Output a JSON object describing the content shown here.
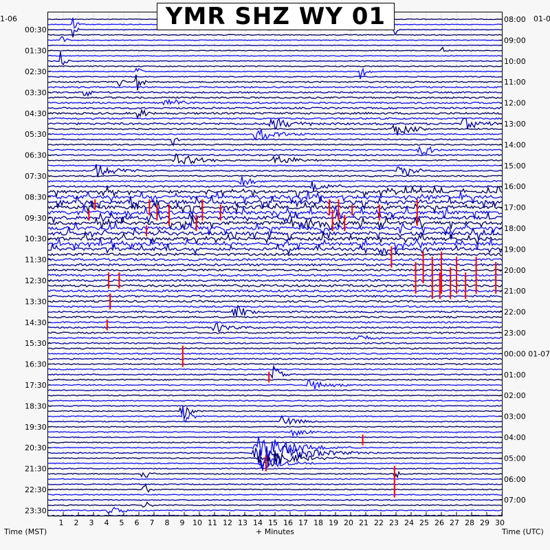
{
  "chart_data": {
    "type": "line",
    "title": "YMR SHZ WY 01",
    "left_top_date": "1-06",
    "right_top_date": "01-0",
    "left_labels": [
      "00:30",
      "01:30",
      "02:30",
      "03:30",
      "04:30",
      "05:30",
      "06:30",
      "07:30",
      "08:30",
      "09:30",
      "10:30",
      "11:30",
      "12:30",
      "13:30",
      "14:30",
      "15:30",
      "16:30",
      "17:30",
      "18:30",
      "19:30",
      "20:30",
      "21:30",
      "22:30",
      "23:30"
    ],
    "right_labels": [
      "08:00",
      "09:00",
      "10:00",
      "11:00",
      "12:00",
      "13:00",
      "14:00",
      "15:00",
      "16:00",
      "17:00",
      "18:00",
      "19:00",
      "20:00",
      "21:00",
      "22:00",
      "23:00",
      "00:00 01-07",
      "01:00",
      "02:00",
      "03:00",
      "04:00",
      "05:00",
      "06:00",
      "07:00"
    ],
    "x_ticks": [
      "1",
      "2",
      "3",
      "4",
      "5",
      "6",
      "7",
      "8",
      "9",
      "10",
      "11",
      "12",
      "13",
      "14",
      "15",
      "16",
      "17",
      "18",
      "19",
      "20",
      "21",
      "22",
      "23",
      "24",
      "25",
      "26",
      "27",
      "28",
      "29",
      "30"
    ],
    "xlim": [
      0,
      30
    ],
    "xlabel": "+ Minutes",
    "left_axis_label": "Time (MST)",
    "right_axis_label": "Time (UTC)",
    "trace_colors": [
      "#000060",
      "#1010ff",
      "#0000a0"
    ],
    "clip_color": "#ff0000",
    "amplitude_per_trace": [
      0.25,
      0.2,
      0.2,
      0.25,
      0.2,
      0.2,
      0.2,
      0.25,
      0.25,
      0.3,
      0.25,
      0.3,
      0.4,
      0.45,
      0.45,
      0.5,
      0.5,
      0.5,
      0.6,
      0.5,
      0.6,
      0.4,
      0.35,
      0.35,
      0.35,
      0.4,
      0.4,
      0.35,
      0.35,
      0.35,
      0.4,
      0.4,
      0.5,
      0.8,
      0.95,
      1.0,
      1.0,
      1.0,
      1.0,
      1.0,
      1.0,
      1.0,
      1.0,
      0.9,
      0.85,
      0.75,
      0.7,
      0.7,
      0.6,
      0.6,
      0.6,
      0.7,
      0.7,
      0.6,
      0.55,
      0.5,
      0.5,
      0.5,
      0.45,
      0.45,
      0.45,
      0.4,
      0.4,
      0.4,
      0.4,
      0.4,
      0.35,
      0.35,
      0.35,
      0.35,
      0.3,
      0.3,
      0.3,
      0.3,
      0.3,
      0.3,
      0.3,
      0.3,
      0.3,
      0.3,
      0.3,
      0.3,
      0.3,
      0.3,
      0.3,
      0.3,
      0.3,
      0.3,
      0.3,
      0.3,
      0.3,
      0.3,
      0.3,
      0.3,
      0.3,
      0.3
    ],
    "events": [
      {
        "row": 1,
        "x": 1.6,
        "amp": 6,
        "dur": 0.3
      },
      {
        "row": 2,
        "x": 1.6,
        "amp": 8,
        "dur": 0.2
      },
      {
        "row": 2,
        "x": 22.9,
        "amp": 5,
        "dur": 0.2
      },
      {
        "row": 4,
        "x": 0.8,
        "amp": 6,
        "dur": 0.3
      },
      {
        "row": 6,
        "x": 25.9,
        "amp": 5,
        "dur": 0.3
      },
      {
        "row": 8,
        "x": 0.8,
        "amp": 7,
        "dur": 0.3
      },
      {
        "row": 10,
        "x": 20.6,
        "amp": 7,
        "dur": 0.4
      },
      {
        "row": 10,
        "x": 5.8,
        "amp": 5,
        "dur": 0.3
      },
      {
        "row": 12,
        "x": 5.8,
        "amp": 9,
        "dur": 0.4
      },
      {
        "row": 12,
        "x": 4.6,
        "amp": 5,
        "dur": 0.3
      },
      {
        "row": 14,
        "x": 2.4,
        "amp": 6,
        "dur": 0.3
      },
      {
        "row": 16,
        "x": 7.8,
        "amp": 4,
        "dur": 1.0
      },
      {
        "row": 18,
        "x": 5.9,
        "amp": 8,
        "dur": 0.4
      },
      {
        "row": 20,
        "x": 14.8,
        "amp": 5,
        "dur": 1.5
      },
      {
        "row": 20,
        "x": 27.5,
        "amp": 4,
        "dur": 1.5
      },
      {
        "row": 21,
        "x": 22.9,
        "amp": 5,
        "dur": 1.2
      },
      {
        "row": 22,
        "x": 13.8,
        "amp": 5,
        "dur": 1.5
      },
      {
        "row": 23,
        "x": 8.2,
        "amp": 6,
        "dur": 0.3
      },
      {
        "row": 25,
        "x": 24.6,
        "amp": 4,
        "dur": 1.2
      },
      {
        "row": 27,
        "x": 8.5,
        "amp": 5,
        "dur": 1.5
      },
      {
        "row": 27,
        "x": 15.0,
        "amp": 4,
        "dur": 1.5
      },
      {
        "row": 29,
        "x": 3.2,
        "amp": 5,
        "dur": 1.5
      },
      {
        "row": 29,
        "x": 23.2,
        "amp": 5,
        "dur": 1.2
      },
      {
        "row": 31,
        "x": 12.8,
        "amp": 4,
        "dur": 1.0
      },
      {
        "row": 32,
        "x": 17.5,
        "amp": 4,
        "dur": 1.2
      },
      {
        "row": 56,
        "x": 12.3,
        "amp": 5,
        "dur": 1.2
      },
      {
        "row": 59,
        "x": 11.0,
        "amp": 4,
        "dur": 1.2
      },
      {
        "row": 61,
        "x": 20.0,
        "amp": 4,
        "dur": 1.0
      },
      {
        "row": 68,
        "x": 14.9,
        "amp": 8,
        "dur": 0.6
      },
      {
        "row": 70,
        "x": 17.3,
        "amp": 4,
        "dur": 1.5
      },
      {
        "row": 75,
        "x": 8.8,
        "amp": 8,
        "dur": 0.5
      },
      {
        "row": 76,
        "x": 8.9,
        "amp": 8,
        "dur": 0.5
      },
      {
        "row": 77,
        "x": 15.4,
        "amp": 4,
        "dur": 1.2
      },
      {
        "row": 79,
        "x": 16.2,
        "amp": 3,
        "dur": 1.2
      },
      {
        "row": 82,
        "x": 14.0,
        "amp": 9,
        "dur": 2.5
      },
      {
        "row": 83,
        "x": 14.0,
        "amp": 10,
        "dur": 3.0
      },
      {
        "row": 84,
        "x": 14.2,
        "amp": 8,
        "dur": 2.0
      },
      {
        "row": 85,
        "x": 14.2,
        "amp": 5,
        "dur": 1.5
      },
      {
        "row": 87,
        "x": 6.2,
        "amp": 6,
        "dur": 0.4
      },
      {
        "row": 87,
        "x": 22.9,
        "amp": 6,
        "dur": 0.3
      },
      {
        "row": 90,
        "x": 6.3,
        "amp": 5,
        "dur": 0.4
      },
      {
        "row": 93,
        "x": 6.3,
        "amp": 6,
        "dur": 0.3
      },
      {
        "row": 94,
        "x": 4.0,
        "amp": 3,
        "dur": 1.0
      }
    ],
    "clip_marks": [
      {
        "row": 35,
        "x": 3.1,
        "rows": 2
      },
      {
        "row": 35,
        "x": 6.7,
        "rows": 3
      },
      {
        "row": 35,
        "x": 10.2,
        "rows": 4
      },
      {
        "row": 35,
        "x": 18.6,
        "rows": 3
      },
      {
        "row": 35,
        "x": 19.2,
        "rows": 4
      },
      {
        "row": 35,
        "x": 24.4,
        "rows": 5
      },
      {
        "row": 36,
        "x": 7.2,
        "rows": 3
      },
      {
        "row": 36,
        "x": 8.0,
        "rows": 4
      },
      {
        "row": 36,
        "x": 11.4,
        "rows": 3
      },
      {
        "row": 36,
        "x": 20.1,
        "rows": 2
      },
      {
        "row": 36,
        "x": 21.9,
        "rows": 3
      },
      {
        "row": 37,
        "x": 18.8,
        "rows": 4
      },
      {
        "row": 37,
        "x": 2.7,
        "rows": 2
      },
      {
        "row": 38,
        "x": 9.8,
        "rows": 3
      },
      {
        "row": 38,
        "x": 19.6,
        "rows": 3
      },
      {
        "row": 40,
        "x": 6.5,
        "rows": 2
      },
      {
        "row": 44,
        "x": 22.7,
        "rows": 4
      },
      {
        "row": 45,
        "x": 24.8,
        "rows": 6
      },
      {
        "row": 45,
        "x": 26.0,
        "rows": 8
      },
      {
        "row": 46,
        "x": 25.4,
        "rows": 8
      },
      {
        "row": 46,
        "x": 27.0,
        "rows": 7
      },
      {
        "row": 46,
        "x": 28.3,
        "rows": 7
      },
      {
        "row": 47,
        "x": 29.6,
        "rows": 6
      },
      {
        "row": 47,
        "x": 24.3,
        "rows": 6
      },
      {
        "row": 48,
        "x": 26.6,
        "rows": 6
      },
      {
        "row": 49,
        "x": 25.9,
        "rows": 5
      },
      {
        "row": 49,
        "x": 27.6,
        "rows": 5
      },
      {
        "row": 49,
        "x": 4.0,
        "rows": 3
      },
      {
        "row": 49,
        "x": 4.7,
        "rows": 3
      },
      {
        "row": 53,
        "x": 4.1,
        "rows": 3
      },
      {
        "row": 58,
        "x": 3.9,
        "rows": 2
      },
      {
        "row": 63,
        "x": 8.9,
        "rows": 4
      },
      {
        "row": 68,
        "x": 14.6,
        "rows": 2
      },
      {
        "row": 80,
        "x": 20.8,
        "rows": 2
      },
      {
        "row": 84,
        "x": 14.4,
        "rows": 3
      },
      {
        "row": 86,
        "x": 22.9,
        "rows": 6
      }
    ]
  }
}
